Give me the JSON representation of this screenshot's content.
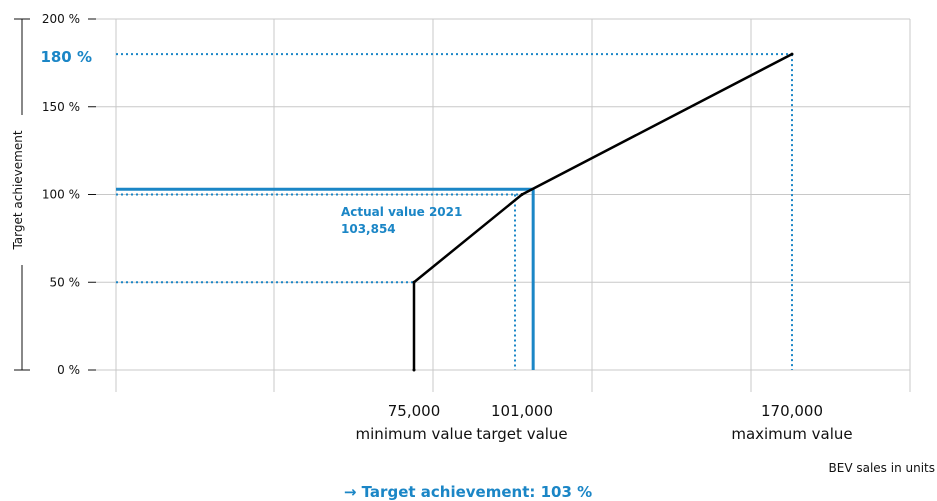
{
  "chart_data": {
    "type": "line",
    "ylabel": "Target achievement",
    "xlabel": "BEV sales in units",
    "y_ticks": [
      "0 %",
      "50 %",
      "100 %",
      "150 %",
      "200 %"
    ],
    "highlight_y_label": "180 %",
    "x_markers": [
      {
        "value": "75,000",
        "label": "minimum value"
      },
      {
        "value": "101,000",
        "label": "target value"
      },
      {
        "value": "170,000",
        "label": "maximum value"
      }
    ],
    "series": [
      {
        "points": [
          [
            75000,
            0
          ],
          [
            75000,
            50
          ],
          [
            101000,
            100
          ],
          [
            170000,
            180
          ]
        ]
      }
    ],
    "actual_value": {
      "x": 103854,
      "y": 103,
      "label_line1": "Actual value 2021",
      "label_line2": "103,854"
    },
    "ylim": [
      0,
      200
    ],
    "grid": true,
    "footer": "→ Target achievement: 103 %",
    "colors": {
      "line": "#000000",
      "accent": "#1b86c6",
      "grid": "#c8c8c8"
    }
  }
}
